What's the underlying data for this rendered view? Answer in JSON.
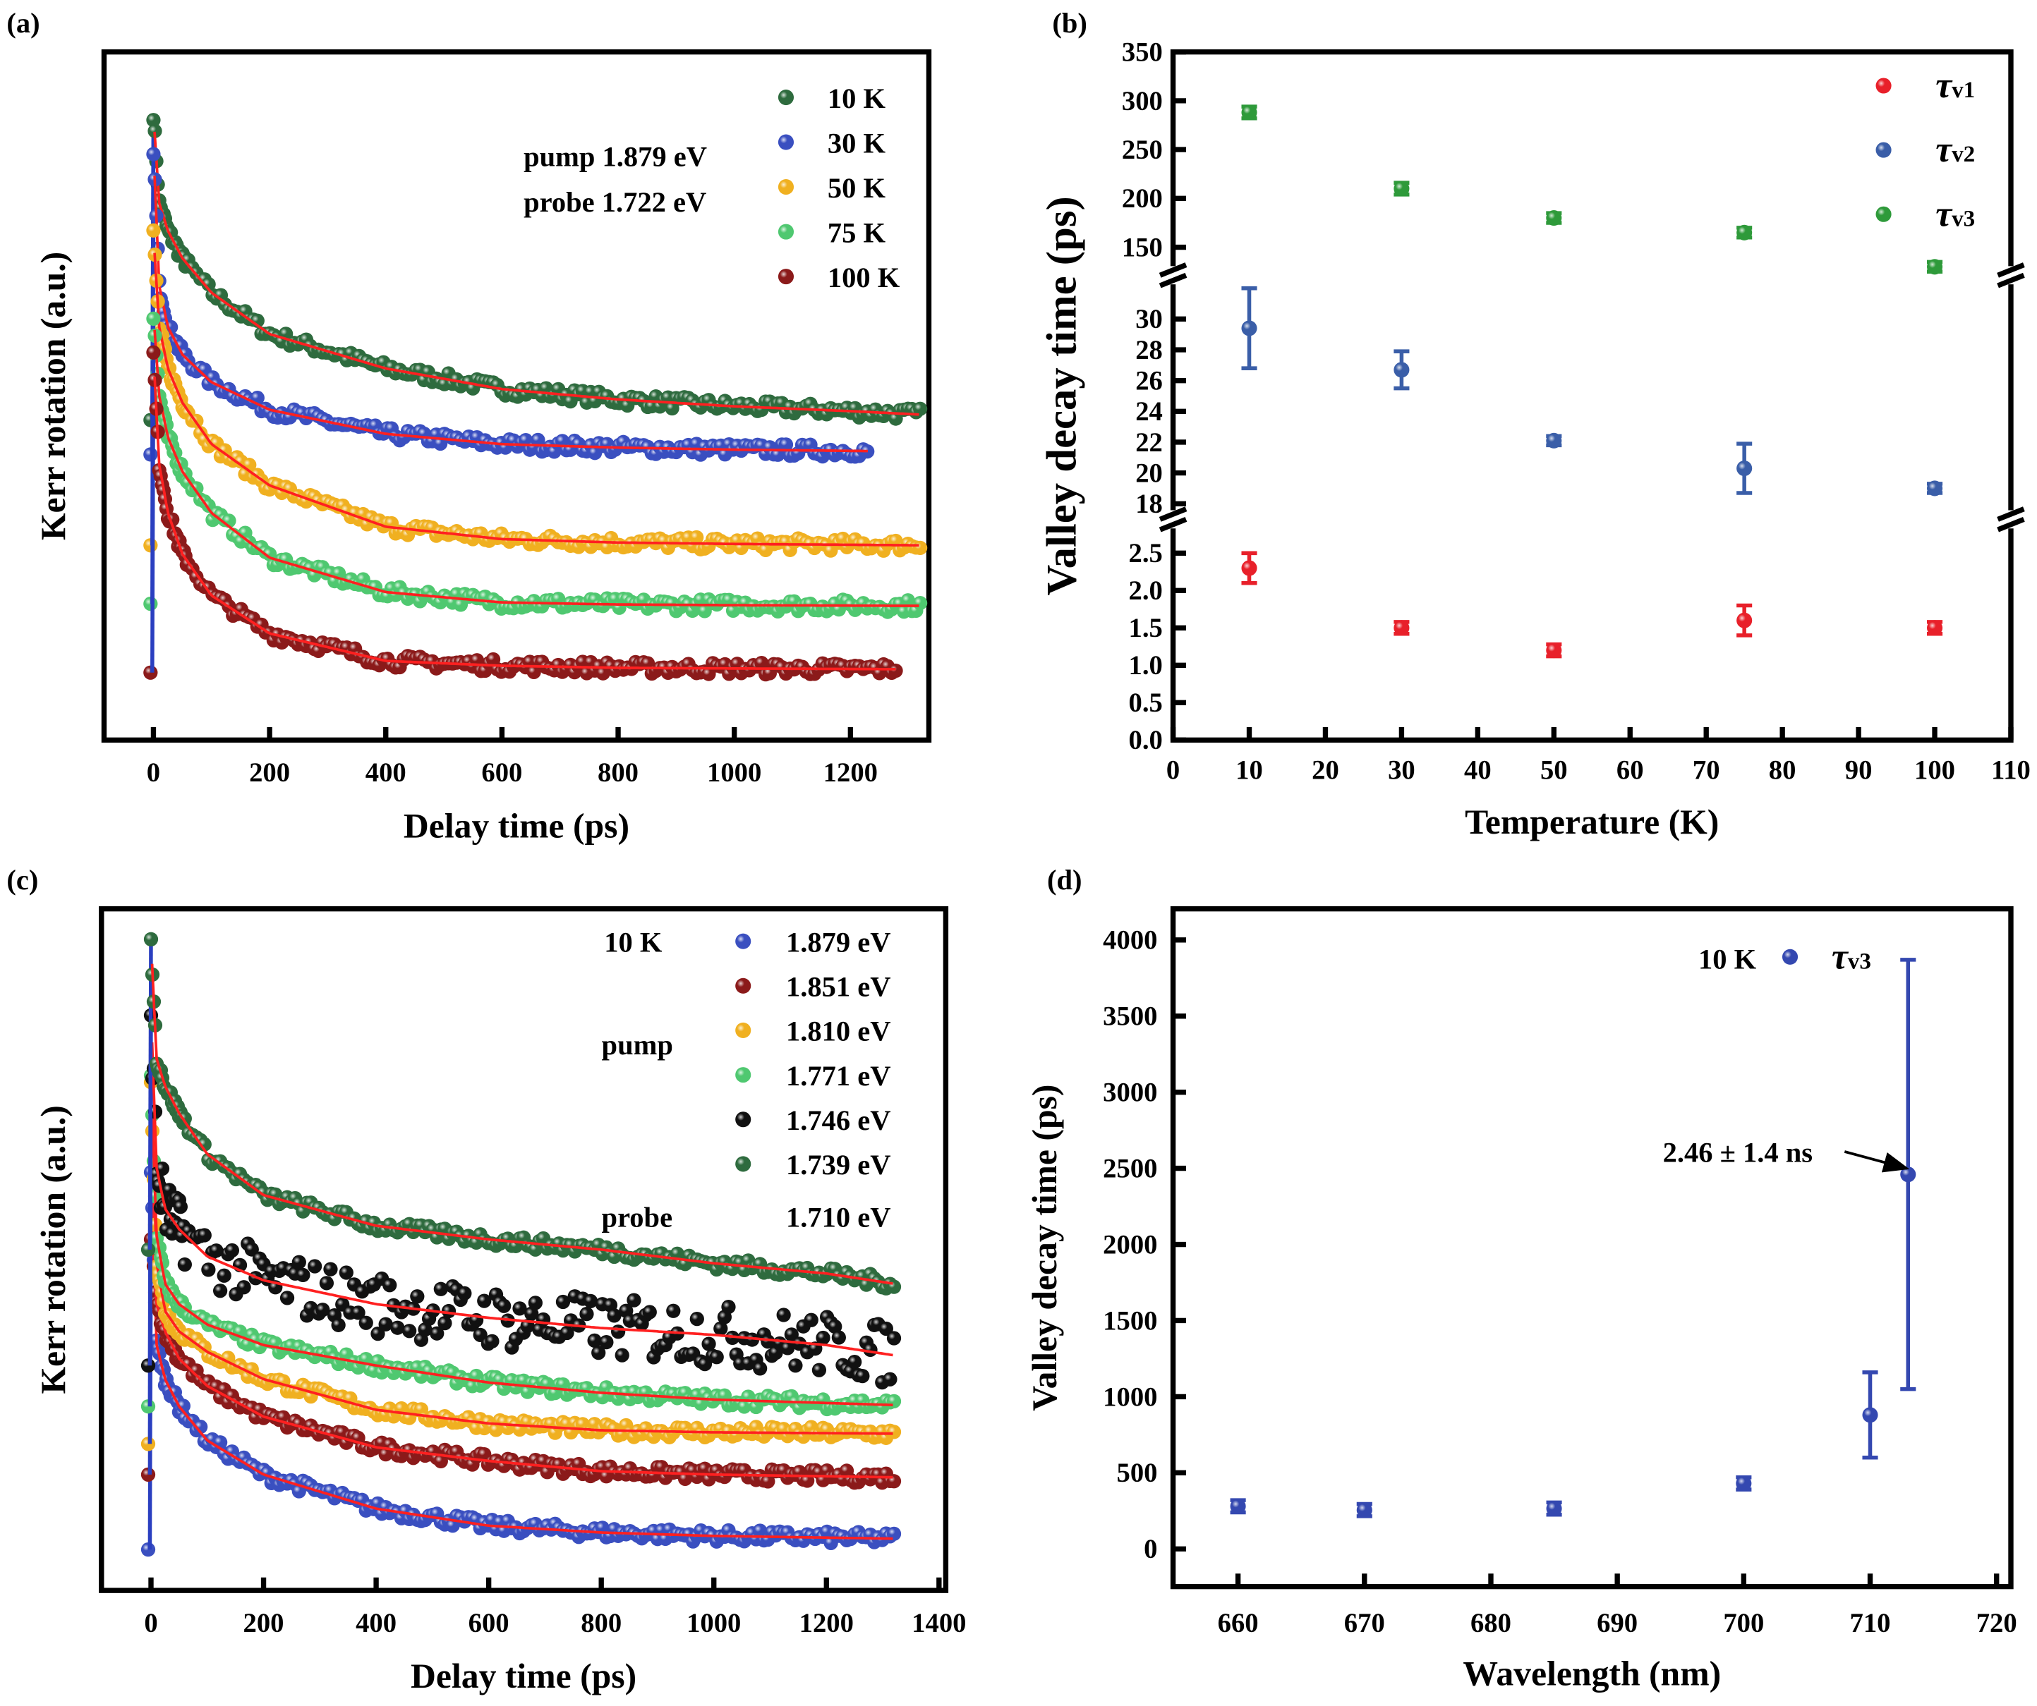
{
  "chart_data": [
    {
      "panel_label": "(a)",
      "type": "scatter",
      "xlabel": "Delay time (ps)",
      "ylabel": "Kerr rotation (a.u.)",
      "xlim": [
        -80,
        1340
      ],
      "ylim": [
        0,
        1
      ],
      "xticks": [
        0,
        200,
        400,
        600,
        800,
        1000,
        1200
      ],
      "yticks_shown": false,
      "grid": false,
      "legend_position": "top-right",
      "annotations": [
        "pump  1.879 eV",
        "probe  1.722 eV"
      ],
      "fit_color": "#ff2020",
      "series": [
        {
          "name": "10 K",
          "color": "#2e6b3e",
          "pre": 0.465,
          "x": [
            0,
            10,
            25,
            50,
            100,
            200,
            400,
            600,
            800,
            1000,
            1200,
            1320
          ],
          "y": [
            0.91,
            0.78,
            0.74,
            0.7,
            0.65,
            0.59,
            0.54,
            0.51,
            0.495,
            0.485,
            0.478,
            0.473
          ]
        },
        {
          "name": "30 K",
          "color": "#3a4fc0",
          "pre": 0.415,
          "x": [
            0,
            10,
            25,
            50,
            100,
            200,
            400,
            600,
            800,
            1000,
            1230
          ],
          "y": [
            0.86,
            0.66,
            0.6,
            0.56,
            0.52,
            0.48,
            0.445,
            0.43,
            0.425,
            0.422,
            0.42
          ]
        },
        {
          "name": "50 K",
          "color": "#f0b020",
          "pre": 0.283,
          "x": [
            0,
            10,
            25,
            50,
            100,
            200,
            400,
            600,
            800,
            1000,
            1320
          ],
          "y": [
            0.735,
            0.6,
            0.54,
            0.49,
            0.43,
            0.37,
            0.31,
            0.292,
            0.287,
            0.285,
            0.283
          ]
        },
        {
          "name": "75 K",
          "color": "#4fc870",
          "pre": 0.198,
          "x": [
            0,
            10,
            25,
            50,
            100,
            200,
            400,
            600,
            800,
            1000,
            1320
          ],
          "y": [
            0.62,
            0.5,
            0.44,
            0.39,
            0.33,
            0.265,
            0.215,
            0.2,
            0.197,
            0.196,
            0.195
          ]
        },
        {
          "name": "100 K",
          "color": "#8b1a1a",
          "pre": 0.098,
          "x": [
            0,
            10,
            25,
            50,
            100,
            200,
            400,
            600,
            800,
            1000,
            1280
          ],
          "y": [
            0.56,
            0.4,
            0.33,
            0.27,
            0.21,
            0.155,
            0.115,
            0.108,
            0.105,
            0.104,
            0.103
          ]
        }
      ]
    },
    {
      "panel_label": "(b)",
      "type": "scatter",
      "xlabel": "Temperature (K)",
      "ylabel": "Valley decay time (ps)",
      "xlim": [
        0,
        110
      ],
      "xticks": [
        0,
        10,
        20,
        30,
        40,
        50,
        60,
        70,
        80,
        90,
        100,
        110
      ],
      "broken_y_axis": true,
      "y_segments": [
        {
          "range": [
            0,
            2.9
          ],
          "ticks": [
            "0.0",
            "0.5",
            "1.0",
            "1.5",
            "2.0",
            "2.5"
          ]
        },
        {
          "range": [
            18,
            32
          ],
          "ticks": [
            "18",
            "20",
            "22",
            "24",
            "26",
            "28",
            "30"
          ]
        },
        {
          "range": [
            120,
            350
          ],
          "ticks": [
            "150",
            "200",
            "250",
            "300",
            "350"
          ]
        }
      ],
      "legend_position": "top-right",
      "series": [
        {
          "name": "τv1",
          "symbol": "τ",
          "sub": "v1",
          "color": "#e8202a",
          "segment": 0,
          "x": [
            10,
            30,
            50,
            75,
            100
          ],
          "y": [
            2.3,
            1.5,
            1.2,
            1.6,
            1.5
          ],
          "err": [
            0.2,
            0.08,
            0.08,
            0.2,
            0.08
          ]
        },
        {
          "name": "τv2",
          "symbol": "τ",
          "sub": "v2",
          "color": "#3a5ea8",
          "segment": 1,
          "x": [
            10,
            30,
            50,
            75,
            100
          ],
          "y": [
            29.4,
            26.7,
            22.1,
            20.3,
            19.0
          ],
          "err": [
            2.6,
            1.2,
            0.3,
            1.6,
            0.3
          ]
        },
        {
          "name": "τv3",
          "symbol": "τ",
          "sub": "v3",
          "color": "#2e9a3a",
          "segment": 2,
          "x": [
            10,
            30,
            50,
            75,
            100
          ],
          "y": [
            288,
            210,
            180,
            165,
            130
          ],
          "err": [
            6,
            6,
            5,
            5,
            5
          ]
        }
      ]
    },
    {
      "panel_label": "(c)",
      "type": "scatter",
      "xlabel": "Delay time (ps)",
      "ylabel": "Kerr rotation (a.u.)",
      "xlim": [
        -85,
        1400
      ],
      "ylim": [
        0,
        1
      ],
      "xticks": [
        0,
        200,
        400,
        600,
        800,
        1000,
        1200,
        1400
      ],
      "yticks_shown": false,
      "grid": false,
      "legend_position": "top-right",
      "annotations": [
        "10 K",
        "pump",
        "probe",
        "1.710 eV"
      ],
      "fit_color": "#ff2020",
      "series": [
        {
          "name": "1.879 eV",
          "color": "#3a4fc0",
          "pre": 0.06,
          "x": [
            0,
            10,
            25,
            50,
            100,
            200,
            400,
            600,
            800,
            1000,
            1320
          ],
          "y": [
            0.62,
            0.36,
            0.31,
            0.27,
            0.22,
            0.17,
            0.12,
            0.095,
            0.085,
            0.08,
            0.076
          ]
        },
        {
          "name": "1.851 eV",
          "color": "#8b1a1a",
          "pre": 0.17,
          "x": [
            0,
            10,
            25,
            50,
            100,
            200,
            400,
            600,
            800,
            1000,
            1320
          ],
          "y": [
            0.52,
            0.42,
            0.38,
            0.34,
            0.3,
            0.255,
            0.21,
            0.19,
            0.175,
            0.17,
            0.166
          ]
        },
        {
          "name": "1.810 eV",
          "color": "#f0b020",
          "pre": 0.215,
          "x": [
            0,
            10,
            25,
            50,
            100,
            200,
            400,
            600,
            800,
            1000,
            1320
          ],
          "y": [
            0.74,
            0.48,
            0.41,
            0.38,
            0.35,
            0.31,
            0.265,
            0.245,
            0.235,
            0.232,
            0.23
          ]
        },
        {
          "name": "1.771 eV",
          "color": "#4fc870",
          "pre": 0.27,
          "x": [
            0,
            10,
            25,
            50,
            100,
            200,
            400,
            600,
            800,
            1000,
            1200,
            1320
          ],
          "y": [
            0.75,
            0.52,
            0.45,
            0.42,
            0.39,
            0.36,
            0.33,
            0.305,
            0.29,
            0.28,
            0.275,
            0.272
          ]
        },
        {
          "name": "1.746 eV",
          "color": "#111111",
          "pre": 0.33,
          "x": [
            0,
            10,
            25,
            50,
            100,
            200,
            400,
            600,
            800,
            1000,
            1200,
            1320
          ],
          "y": [
            0.85,
            0.62,
            0.56,
            0.53,
            0.49,
            0.455,
            0.42,
            0.4,
            0.385,
            0.375,
            0.36,
            0.345
          ]
        },
        {
          "name": "1.739 eV",
          "color": "#2e6b3e",
          "pre": 0.5,
          "x": [
            0,
            10,
            25,
            50,
            100,
            200,
            400,
            600,
            800,
            1000,
            1200,
            1320
          ],
          "y": [
            0.954,
            0.78,
            0.74,
            0.7,
            0.64,
            0.58,
            0.535,
            0.515,
            0.5,
            0.48,
            0.465,
            0.45
          ]
        }
      ]
    },
    {
      "panel_label": "(d)",
      "type": "scatter",
      "xlabel": "Wavelength (nm)",
      "ylabel": "Valley decay time (ps)",
      "xlim": [
        655,
        720
      ],
      "ylim": [
        -250,
        4200
      ],
      "xticks": [
        660,
        670,
        680,
        690,
        700,
        710,
        720
      ],
      "yticks": [
        0,
        500,
        1000,
        1500,
        2000,
        2500,
        3000,
        3500,
        4000
      ],
      "legend_position": "top-right",
      "legend_prefix": "10 K",
      "annotation": "2.46 ± 1.4 ns",
      "series": [
        {
          "name": "τv3",
          "symbol": "τ",
          "sub": "v3",
          "color": "#3448b0",
          "x": [
            660,
            670,
            685,
            700,
            710,
            713
          ],
          "y": [
            280,
            255,
            265,
            430,
            880,
            2460
          ],
          "err_low": [
            40,
            40,
            40,
            40,
            280,
            1410
          ],
          "err_high": [
            40,
            40,
            40,
            40,
            280,
            1410
          ]
        }
      ]
    }
  ]
}
